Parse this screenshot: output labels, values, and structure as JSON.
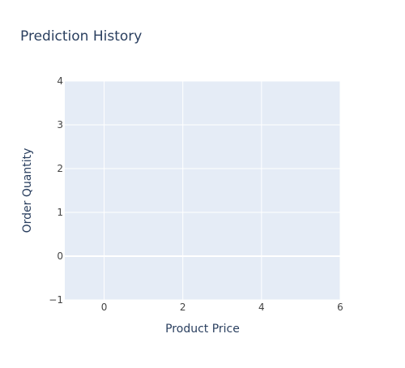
{
  "chart_data": {
    "type": "scatter",
    "title": "Prediction History",
    "xlabel": "Product Price",
    "ylabel": "Order Quantity",
    "xlim": [
      -1,
      6
    ],
    "ylim": [
      -1,
      4
    ],
    "x_ticks": [
      0,
      2,
      4,
      6
    ],
    "y_ticks": [
      -1,
      0,
      1,
      2,
      3,
      4
    ],
    "x_tick_labels": [
      "0",
      "2",
      "4",
      "6"
    ],
    "y_tick_labels": [
      "−1",
      "0",
      "1",
      "2",
      "3",
      "4"
    ],
    "grid": true,
    "series": [],
    "colors": {
      "plot_bg": "#e5ecf6",
      "grid": "#ffffff",
      "text": "#2a3f5f",
      "tick_text": "#444444"
    }
  }
}
